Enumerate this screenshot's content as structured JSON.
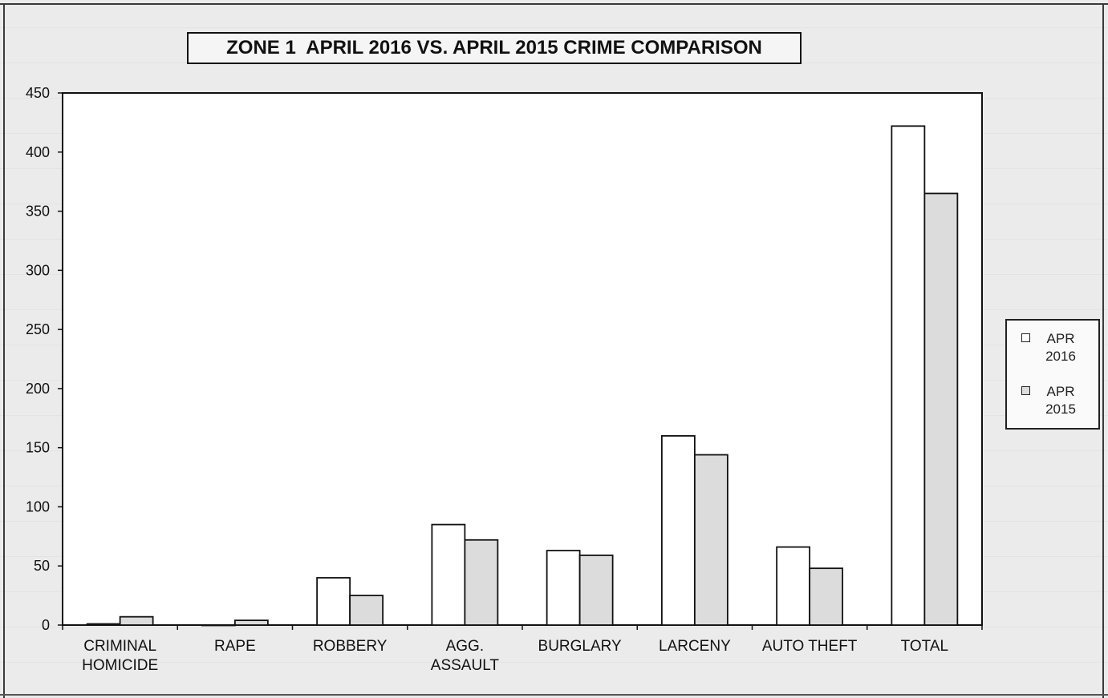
{
  "chart_data": {
    "type": "bar",
    "title": "ZONE 1  APRIL 2016 VS. APRIL 2015 CRIME COMPARISON",
    "xlabel": "",
    "ylabel": "",
    "ylim": [
      0,
      450
    ],
    "yticks": [
      "0",
      "50",
      "100",
      "150",
      "200",
      "250",
      "300",
      "350",
      "400",
      "450"
    ],
    "grid": false,
    "legend_position": "right",
    "categories": [
      [
        "CRIMINAL",
        "HOMICIDE"
      ],
      [
        "RAPE"
      ],
      [
        "ROBBERY"
      ],
      [
        "AGG.",
        "ASSAULT"
      ],
      [
        "BURGLARY"
      ],
      [
        "LARCENY"
      ],
      [
        "AUTO THEFT"
      ],
      [
        "TOTAL"
      ]
    ],
    "series": [
      {
        "name": "APR 2016",
        "fill": "#ffffff",
        "values": [
          1,
          0,
          40,
          85,
          63,
          160,
          66,
          422
        ]
      },
      {
        "name": "APR 2015",
        "fill": "#dcdcdc",
        "values": [
          7,
          4,
          25,
          72,
          59,
          144,
          48,
          365
        ]
      }
    ]
  }
}
